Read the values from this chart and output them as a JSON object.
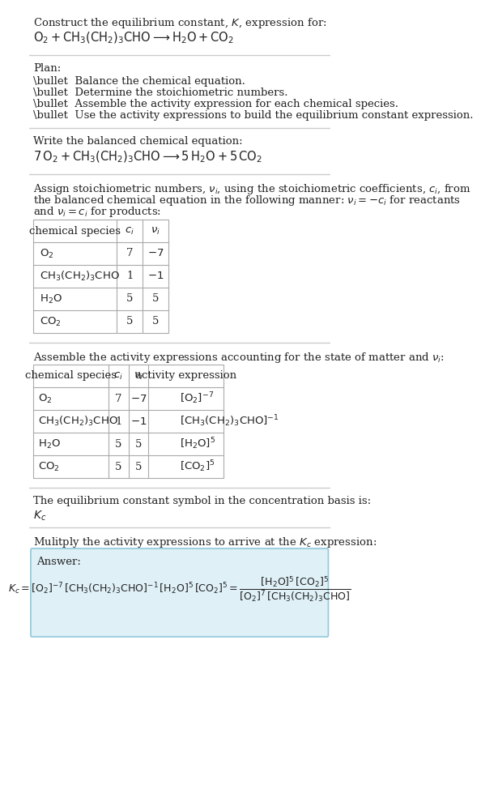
{
  "title": "Construct the equilibrium constant, $K$, expression for:",
  "reaction_unbalanced": "$\\mathrm{O_2 + CH_3(CH_2)_3CHO \\longrightarrow H_2O + CO_2}$",
  "plan_header": "Plan:",
  "plan_items": [
    "\\bullet  Balance the chemical equation.",
    "\\bullet  Determine the stoichiometric numbers.",
    "\\bullet  Assemble the activity expression for each chemical species.",
    "\\bullet  Use the activity expressions to build the equilibrium constant expression."
  ],
  "balanced_header": "Write the balanced chemical equation:",
  "reaction_balanced": "$\\mathrm{7\\,O_2 + CH_3(CH_2)_3CHO \\longrightarrow 5\\,H_2O + 5\\,CO_2}$",
  "stoich_intro": "Assign stoichiometric numbers, $\\nu_i$, using the stoichiometric coefficients, $c_i$, from\nthe balanced chemical equation in the following manner: $\\nu_i = -c_i$ for reactants\nand $\\nu_i = c_i$ for products:",
  "table1_headers": [
    "chemical species",
    "$c_i$",
    "$\\nu_i$"
  ],
  "table1_rows": [
    [
      "$\\mathrm{O_2}$",
      "7",
      "$-7$"
    ],
    [
      "$\\mathrm{CH_3(CH_2)_3CHO}$",
      "1",
      "$-1$"
    ],
    [
      "$\\mathrm{H_2O}$",
      "5",
      "5"
    ],
    [
      "$\\mathrm{CO_2}$",
      "5",
      "5"
    ]
  ],
  "assemble_intro": "Assemble the activity expressions accounting for the state of matter and $\\nu_i$:",
  "table2_headers": [
    "chemical species",
    "$c_i$",
    "$\\nu_i$",
    "activity expression"
  ],
  "table2_rows": [
    [
      "$\\mathrm{O_2}$",
      "7",
      "$-7$",
      "$[\\mathrm{O_2}]^{-7}$"
    ],
    [
      "$\\mathrm{CH_3(CH_2)_3CHO}$",
      "1",
      "$-1$",
      "$[\\mathrm{CH_3(CH_2)_3CHO}]^{-1}$"
    ],
    [
      "$\\mathrm{H_2O}$",
      "5",
      "5",
      "$[\\mathrm{H_2O}]^{5}$"
    ],
    [
      "$\\mathrm{CO_2}$",
      "5",
      "5",
      "$[\\mathrm{CO_2}]^{5}$"
    ]
  ],
  "symbol_header": "The equilibrium constant symbol in the concentration basis is:",
  "symbol": "$K_c$",
  "multiply_header": "Mulitply the activity expressions to arrive at the $K_c$ expression:",
  "answer_label": "Answer:",
  "answer_eq": "$K_c = [\\mathrm{O_2}]^{-7}\\,[\\mathrm{CH_3(CH_2)_3CHO}]^{-1}\\,[\\mathrm{H_2O}]^{5}\\,[\\mathrm{CO_2}]^{5} = \\dfrac{[\\mathrm{H_2O}]^{5}\\,[\\mathrm{CO_2}]^{5}}{[\\mathrm{O_2}]^{7}\\,[\\mathrm{CH_3(CH_2)_3CHO}]}$",
  "bg_color": "#ffffff",
  "table_border_color": "#aaaaaa",
  "answer_bg_color": "#dff0f7",
  "answer_border_color": "#90c8dc",
  "text_color": "#222222",
  "separator_color": "#cccccc",
  "font_size": 9.5,
  "math_font_size": 10
}
